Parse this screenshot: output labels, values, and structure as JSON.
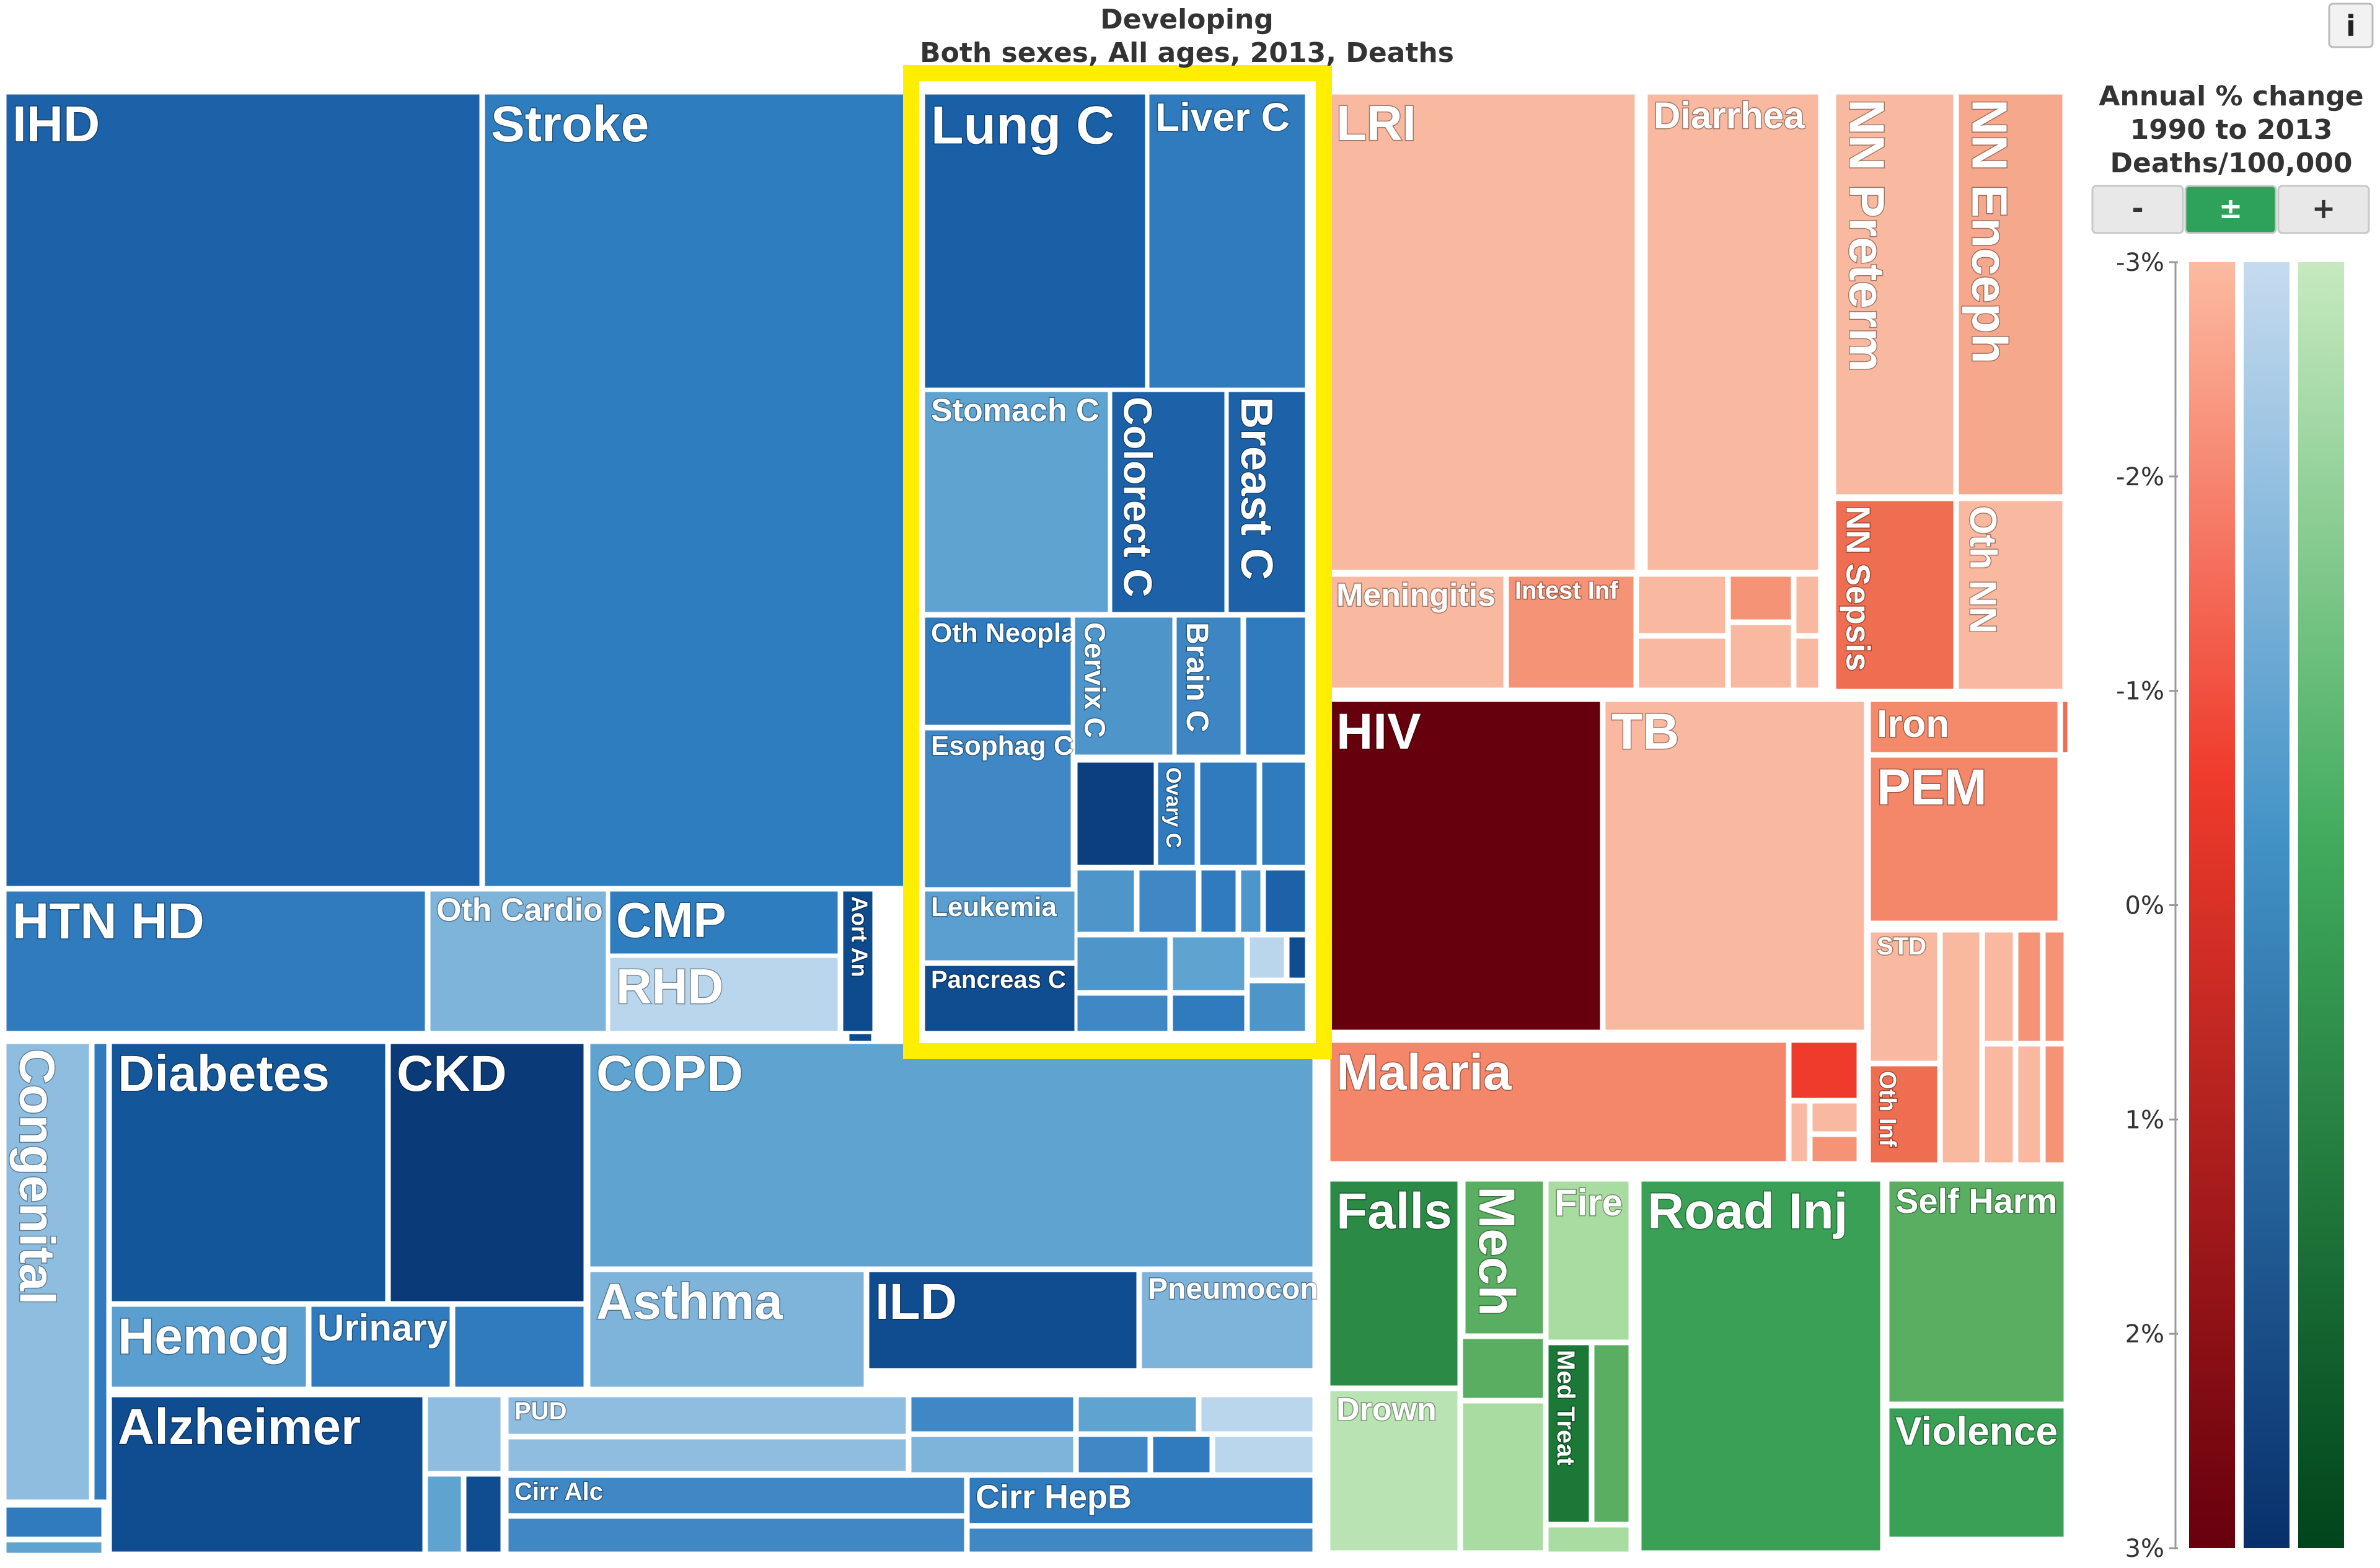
{
  "chart_data": {
    "type": "treemap",
    "title": "Developing",
    "subtitle": "Both sexes, All ages, 2013, Deaths",
    "info_button": "i",
    "highlighted_group": "Neoplasms",
    "legend": {
      "title_lines": [
        "Annual % change",
        "1990 to 2013",
        "Deaths/100,000"
      ],
      "buttons": [
        "-",
        "±",
        "+"
      ],
      "active_button": "±",
      "ticks": [
        "-3%",
        "-2%",
        "-1%",
        "0%",
        "1%",
        "2%",
        "3%"
      ],
      "range": [
        -3,
        3
      ]
    },
    "colors": {
      "non_communicable": "#2f7bbd",
      "communicable": "#f4876a",
      "injuries": "#3fa35a",
      "highlight": "#ffee00"
    },
    "cells": [
      {
        "label": "IHD",
        "group": "ncd",
        "color": "#1d62a8"
      },
      {
        "label": "Stroke",
        "group": "ncd",
        "color": "#2e7dbf"
      },
      {
        "label": "HTN HD",
        "group": "ncd",
        "color": "#2f7bbd"
      },
      {
        "label": "Oth Cardio",
        "group": "ncd",
        "color": "#7eb3da"
      },
      {
        "label": "CMP",
        "group": "ncd",
        "color": "#2e7dbf"
      },
      {
        "label": "RHD",
        "group": "ncd",
        "color": "#bad6ec"
      },
      {
        "label": "Aort An",
        "group": "ncd",
        "color": "#0e4a8e"
      },
      {
        "label": "Lung C",
        "group": "neo",
        "color": "#1a60a7"
      },
      {
        "label": "Liver C",
        "group": "neo",
        "color": "#2f7bbd"
      },
      {
        "label": "Stomach C",
        "group": "neo",
        "color": "#5fa3d0"
      },
      {
        "label": "Colorect C",
        "group": "neo",
        "color": "#1d62a8"
      },
      {
        "label": "Breast C",
        "group": "neo",
        "color": "#1d62a8"
      },
      {
        "label": "Oth Neopla",
        "group": "neo",
        "color": "#2f7bbd"
      },
      {
        "label": "Cervix C",
        "group": "neo",
        "color": "#4e95ca"
      },
      {
        "label": "Brain C",
        "group": "neo",
        "color": "#3d86c3"
      },
      {
        "label": "Esophag C",
        "group": "neo",
        "color": "#3f88c5"
      },
      {
        "label": "Ovary C",
        "group": "neo",
        "color": "#2f7bbd"
      },
      {
        "label": "Leukemia",
        "group": "neo",
        "color": "#5a9fcf"
      },
      {
        "label": "Pancreas C",
        "group": "neo",
        "color": "#0f4c90"
      },
      {
        "label": "Congenital",
        "group": "ncd",
        "color": "#8fbde0"
      },
      {
        "label": "Diabetes",
        "group": "ncd",
        "color": "#135699"
      },
      {
        "label": "CKD",
        "group": "ncd",
        "color": "#0a3a78"
      },
      {
        "label": "Hemog",
        "group": "ncd",
        "color": "#5a9fcf"
      },
      {
        "label": "Urinary",
        "group": "ncd",
        "color": "#2f7bbd"
      },
      {
        "label": "Alzheimer",
        "group": "ncd",
        "color": "#0f4c90"
      },
      {
        "label": "COPD",
        "group": "ncd",
        "color": "#5fa3d0"
      },
      {
        "label": "Asthma",
        "group": "ncd",
        "color": "#7eb3da"
      },
      {
        "label": "ILD",
        "group": "ncd",
        "color": "#0f4c90"
      },
      {
        "label": "Pneumocon",
        "group": "ncd",
        "color": "#7eb3da"
      },
      {
        "label": "PUD",
        "group": "ncd",
        "color": "#8fbde0"
      },
      {
        "label": "Cirr Alc",
        "group": "ncd",
        "color": "#3f88c5"
      },
      {
        "label": "Cirr HepB",
        "group": "ncd",
        "color": "#2f7bbd"
      },
      {
        "label": "LRI",
        "group": "cmnn",
        "color": "#f8b9a0"
      },
      {
        "label": "Diarrhea",
        "group": "cmnn",
        "color": "#f8b9a0"
      },
      {
        "label": "NN Preterm",
        "group": "cmnn",
        "color": "#f8b9a0"
      },
      {
        "label": "NN Enceph",
        "group": "cmnn",
        "color": "#f6a88d"
      },
      {
        "label": "NN Sepsis",
        "group": "cmnn",
        "color": "#ef6d50"
      },
      {
        "label": "Oth NN",
        "group": "cmnn",
        "color": "#f8b9a0"
      },
      {
        "label": "Meningitis",
        "group": "cmnn",
        "color": "#f8b9a0"
      },
      {
        "label": "Intest Inf",
        "group": "cmnn",
        "color": "#f59376"
      },
      {
        "label": "HIV",
        "group": "cmnn",
        "color": "#67000d"
      },
      {
        "label": "TB",
        "group": "cmnn",
        "color": "#f8b9a0"
      },
      {
        "label": "Iron",
        "group": "cmnn",
        "color": "#f48a6a"
      },
      {
        "label": "PEM",
        "group": "cmnn",
        "color": "#f4876a"
      },
      {
        "label": "STD",
        "group": "cmnn",
        "color": "#f8b9a0"
      },
      {
        "label": "Oth Inf",
        "group": "cmnn",
        "color": "#ef6d50"
      },
      {
        "label": "Malaria",
        "group": "cmnn",
        "color": "#f4876a"
      },
      {
        "label": "Falls",
        "group": "inj",
        "color": "#2a8a46"
      },
      {
        "label": "Drown",
        "group": "inj",
        "color": "#b9e3b2"
      },
      {
        "label": "Mech",
        "group": "inj",
        "color": "#5aae61"
      },
      {
        "label": "Fire",
        "group": "inj",
        "color": "#a9dca0"
      },
      {
        "label": "Med Treat",
        "group": "inj",
        "color": "#1b7837"
      },
      {
        "label": "Road Inj",
        "group": "inj",
        "color": "#3aa055"
      },
      {
        "label": "Self Harm",
        "group": "inj",
        "color": "#5aae61"
      },
      {
        "label": "Violence",
        "group": "inj",
        "color": "#3aa055"
      }
    ]
  }
}
